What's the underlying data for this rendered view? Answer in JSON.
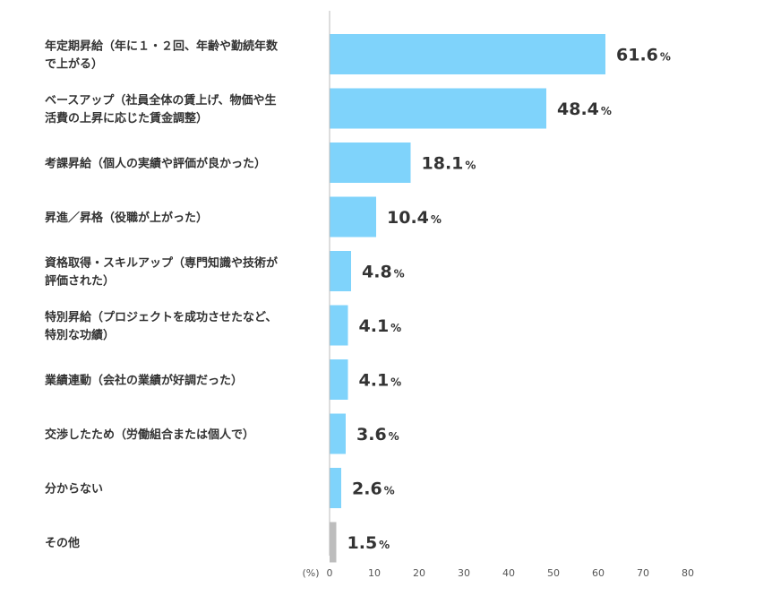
{
  "chart_data": {
    "type": "bar",
    "orientation": "horizontal",
    "unit_label": "(%)",
    "value_suffix": "%",
    "xlim": [
      0,
      80
    ],
    "xticks": [
      0,
      10,
      20,
      30,
      40,
      50,
      60,
      70,
      80
    ],
    "grid": false,
    "categories": [
      [
        "年定期昇給（年に１・２回、年齢や勤続年数",
        "で上がる）"
      ],
      [
        "ベースアップ（社員全体の賃上げ、物価や生",
        "活費の上昇に応じた賃金調整）"
      ],
      [
        "考課昇給（個人の実績や評価が良かった）"
      ],
      [
        "昇進／昇格（役職が上がった）"
      ],
      [
        "資格取得・スキルアップ（専門知識や技術が",
        "評価された）"
      ],
      [
        "特別昇給（プロジェクトを成功させたなど、",
        "特別な功績）"
      ],
      [
        "業績連動（会社の業績が好調だった）"
      ],
      [
        "交渉したため（労働組合または個人で）"
      ],
      [
        "分からない"
      ],
      [
        "その他"
      ]
    ],
    "values": [
      61.6,
      48.4,
      18.1,
      10.4,
      4.8,
      4.1,
      4.1,
      3.6,
      2.6,
      1.5
    ],
    "value_labels": [
      "61.6",
      "48.4",
      "18.1",
      "10.4",
      "4.8",
      "4.1",
      "4.1",
      "3.6",
      "2.6",
      "1.5"
    ],
    "colors": [
      "#7fd3fb",
      "#7fd3fb",
      "#7fd3fb",
      "#7fd3fb",
      "#7fd3fb",
      "#7fd3fb",
      "#7fd3fb",
      "#7fd3fb",
      "#7fd3fb",
      "#bdbdbd"
    ],
    "axis_color": "#bbbbbb"
  }
}
